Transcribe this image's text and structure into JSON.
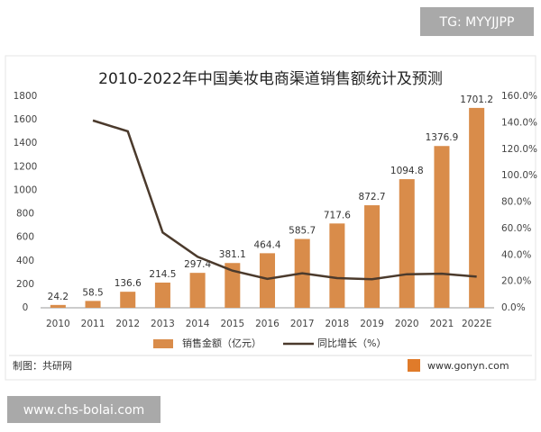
{
  "chart_data": {
    "type": "bar-line",
    "title": "2010-2022年中国美妆电商渠道销售额统计及预测",
    "categories": [
      "2010",
      "2011",
      "2012",
      "2013",
      "2014",
      "2015",
      "2016",
      "2017",
      "2018",
      "2019",
      "2020",
      "2021",
      "2022E"
    ],
    "series": [
      {
        "name": "销售金额（亿元）",
        "type": "bar",
        "color": "#d98c4a",
        "values": [
          24.2,
          58.5,
          136.6,
          214.5,
          297.4,
          381.1,
          464.4,
          585.7,
          717.6,
          872.7,
          1094.8,
          1376.9,
          1701.2
        ]
      },
      {
        "name": "同比增长（%）",
        "type": "line",
        "axis": "y2",
        "color": "#4b3a2c",
        "values": [
          null,
          141.7,
          133.5,
          57.0,
          38.6,
          28.1,
          21.9,
          26.1,
          22.5,
          21.6,
          25.4,
          25.8,
          23.6
        ]
      }
    ],
    "ylim": [
      0,
      1800
    ],
    "yticks": [
      0,
      200,
      400,
      600,
      800,
      1000,
      1200,
      1400,
      1600,
      1800
    ],
    "y2lim": [
      0,
      160
    ],
    "y2ticks": [
      {
        "value": 0,
        "label": "0.0%"
      },
      {
        "value": 20,
        "label": "20.0%"
      },
      {
        "value": 40,
        "label": "40.0%"
      },
      {
        "value": 60,
        "label": "60.0%"
      },
      {
        "value": 80,
        "label": "80.0%"
      },
      {
        "value": 100,
        "label": "100.0%"
      },
      {
        "value": 120,
        "label": "120.0%"
      },
      {
        "value": 140,
        "label": "140.0%"
      },
      {
        "value": 160,
        "label": "160.0%"
      }
    ],
    "grid": false
  },
  "watermark_top": "TG: MYYJJPP",
  "source": "制图：共研网",
  "website": "www.gonyn.com",
  "watermark_bottom": "www.chs-bolai.com"
}
